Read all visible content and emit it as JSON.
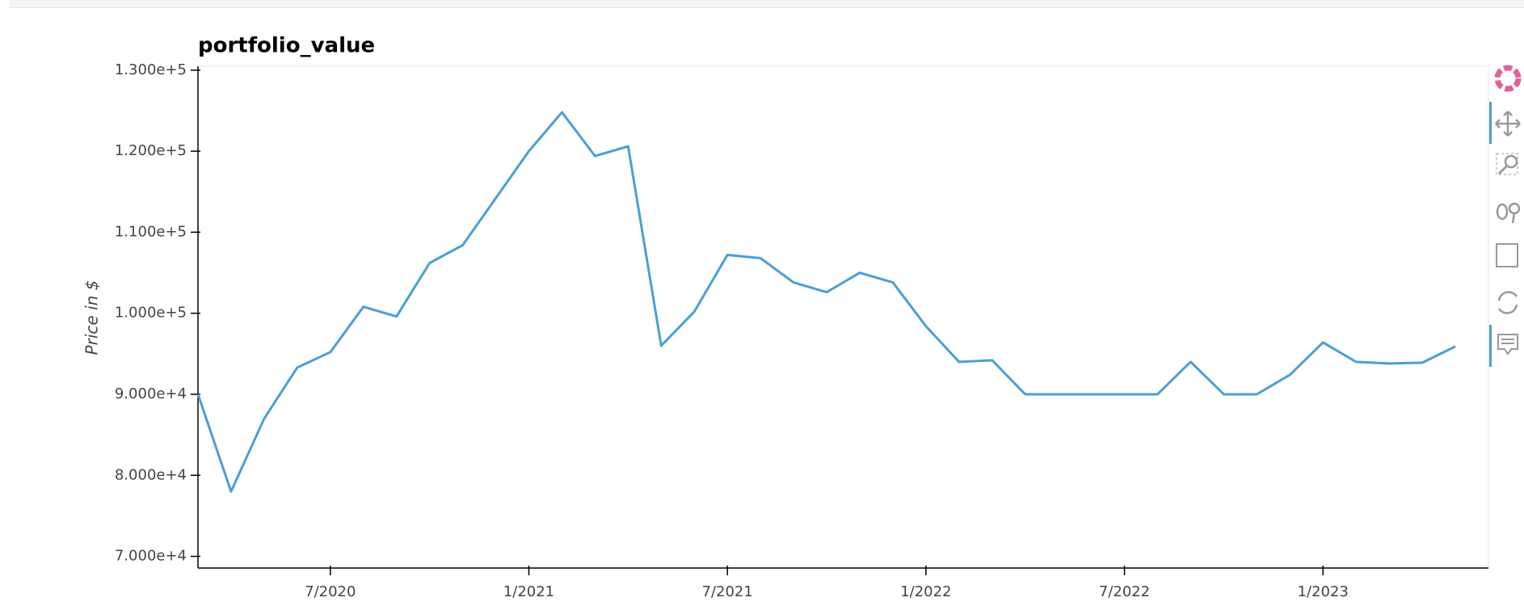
{
  "chart_data": {
    "type": "line",
    "title": "portfolio_value",
    "y_label": "Price in $",
    "x": [
      "2020-03",
      "2020-04",
      "2020-05",
      "2020-06",
      "2020-07",
      "2020-08",
      "2020-09",
      "2020-10",
      "2020-11",
      "2020-12",
      "2021-01",
      "2021-02",
      "2021-03",
      "2021-04",
      "2021-05",
      "2021-06",
      "2021-07",
      "2021-08",
      "2021-09",
      "2021-10",
      "2021-11",
      "2021-12",
      "2022-01",
      "2022-02",
      "2022-03",
      "2022-04",
      "2022-05",
      "2022-06",
      "2022-07",
      "2022-08",
      "2022-09",
      "2022-10",
      "2022-11",
      "2022-12",
      "2023-01",
      "2023-02",
      "2023-03",
      "2023-04",
      "2023-05"
    ],
    "series": [
      {
        "name": "portfolio_value",
        "color": "#4a9fd4",
        "values": [
          90000,
          78000,
          87000,
          93300,
          95200,
          100800,
          99600,
          106200,
          108400,
          114200,
          120000,
          124800,
          119400,
          120600,
          96000,
          100200,
          107200,
          106800,
          103800,
          102600,
          105000,
          103800,
          98400,
          94000,
          94200,
          90000,
          90000,
          90000,
          90000,
          90000,
          94000,
          90000,
          90000,
          92400,
          96400,
          94000,
          93800,
          93900,
          95900
        ]
      }
    ],
    "xlim": [
      "2020-03",
      "2023-06"
    ],
    "xticks": [
      {
        "value": "2020-07",
        "label": "7/2020"
      },
      {
        "value": "2021-01",
        "label": "1/2021"
      },
      {
        "value": "2021-07",
        "label": "7/2021"
      },
      {
        "value": "2022-01",
        "label": "1/2022"
      },
      {
        "value": "2022-07",
        "label": "7/2022"
      },
      {
        "value": "2023-01",
        "label": "1/2023"
      }
    ],
    "ylim": [
      68560,
      130480
    ],
    "yticks": [
      {
        "value": 70000,
        "label": "7.000e+4"
      },
      {
        "value": 80000,
        "label": "8.000e+4"
      },
      {
        "value": 90000,
        "label": "9.000e+4"
      },
      {
        "value": 100000,
        "label": "1.000e+5"
      },
      {
        "value": 110000,
        "label": "1.100e+5"
      },
      {
        "value": 120000,
        "label": "1.200e+5"
      },
      {
        "value": 130000,
        "label": "1.300e+5"
      }
    ],
    "grid": false
  }
}
